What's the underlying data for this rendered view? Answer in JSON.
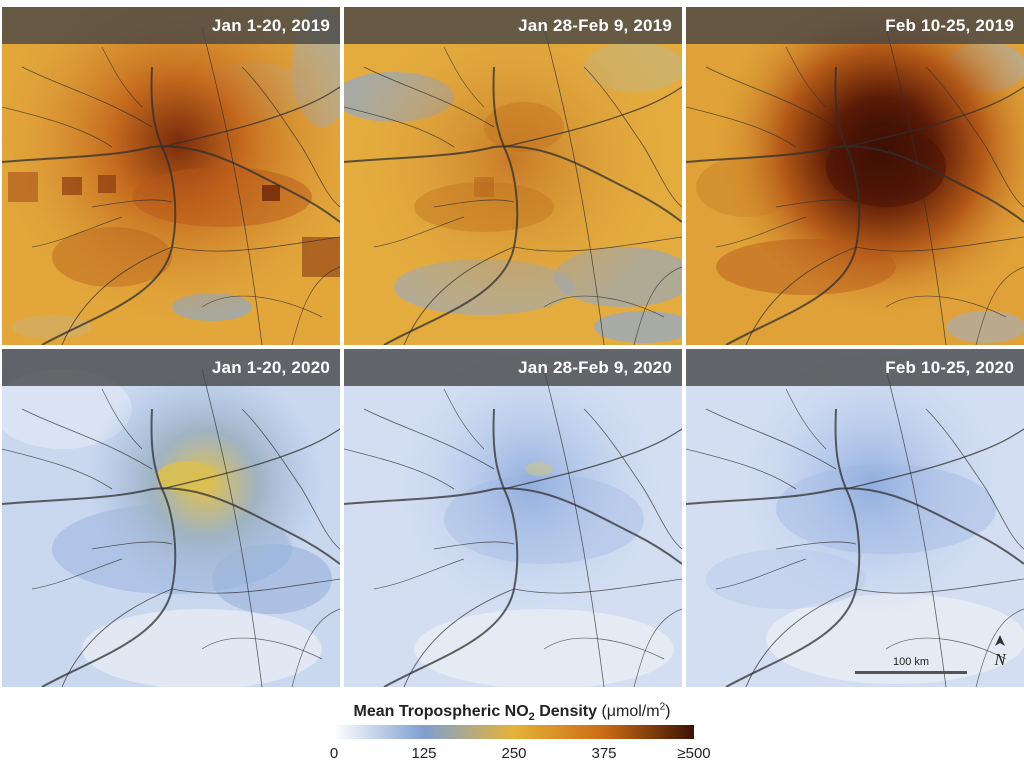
{
  "panels": [
    {
      "label": "Jan 1-20, 2019",
      "no2_level": "high"
    },
    {
      "label": "Jan 28-Feb 9, 2019",
      "no2_level": "moderate"
    },
    {
      "label": "Feb 10-25, 2019",
      "no2_level": "very high"
    },
    {
      "label": "Jan 1-20, 2020",
      "no2_level": "low"
    },
    {
      "label": "Jan 28-Feb 9, 2020",
      "no2_level": "very low"
    },
    {
      "label": "Feb 10-25, 2020",
      "no2_level": "very low"
    }
  ],
  "scale": {
    "label": "100 km"
  },
  "north_symbol": "N",
  "legend": {
    "title_main": "Mean Tropospheric NO",
    "title_sub": "2",
    "title_rest": " Density ",
    "unit_open": "(μmol/m",
    "unit_sup": "2",
    "unit_close": ")",
    "ticks": [
      "0",
      "125",
      "250",
      "375",
      "≥500"
    ],
    "tick_values": [
      0,
      125,
      250,
      375,
      500
    ],
    "range": [
      0,
      500
    ],
    "colors": [
      "#ffffff",
      "#7f9fd0",
      "#e4b339",
      "#cc6b14",
      "#3b1206"
    ]
  }
}
